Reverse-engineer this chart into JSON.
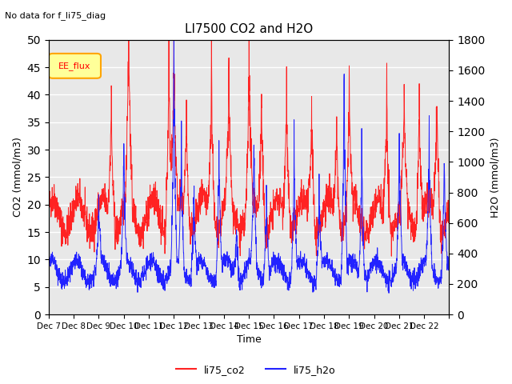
{
  "title": "LI7500 CO2 and H2O",
  "subtitle": "No data for f_li75_diag",
  "xlabel": "Time",
  "ylabel_left": "CO2 (mmol/m3)",
  "ylabel_right": "H2O (mmol/m3)",
  "ylim_left": [
    0,
    50
  ],
  "ylim_right": [
    0,
    1800
  ],
  "yticks_left": [
    0,
    5,
    10,
    15,
    20,
    25,
    30,
    35,
    40,
    45,
    50
  ],
  "yticks_right": [
    0,
    200,
    400,
    600,
    800,
    1000,
    1200,
    1400,
    1600,
    1800
  ],
  "xtick_positions": [
    0,
    1,
    2,
    3,
    4,
    5,
    6,
    7,
    8,
    9,
    10,
    11,
    12,
    13,
    14,
    15,
    16
  ],
  "xtick_labels": [
    "Dec 7",
    "Dec 8",
    "Dec 9",
    "Dec 10",
    "Dec 11",
    "Dec 12",
    "Dec 13",
    "Dec 14",
    "Dec 15",
    "Dec 16",
    "Dec 17",
    "Dec 18",
    "Dec 19",
    "Dec 20",
    "Dec 21",
    "Dec 22",
    ""
  ],
  "legend_box_label": "EE_flux",
  "legend_box_color": "#ffff99",
  "line_co2_color": "#ff2222",
  "line_h2o_color": "#2222ff",
  "background_color": "#e8e8e8",
  "grid_color": "#ffffff",
  "n_days": 16,
  "seed": 42
}
